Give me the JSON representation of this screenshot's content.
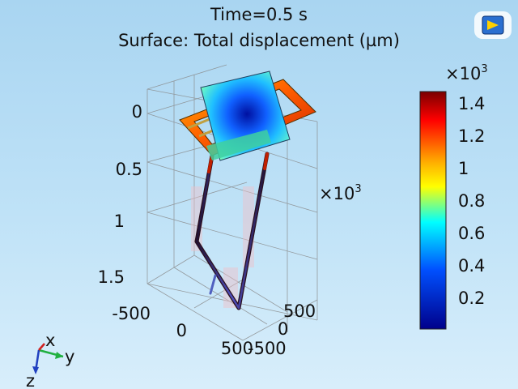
{
  "plot": {
    "title_line1": "Time=0.5 s",
    "title_line2": "Surface: Total displacement (µm)"
  },
  "axes": {
    "z_ticks": [
      "0",
      "0.5",
      "1",
      "1.5"
    ],
    "x_ticks": [
      "-500",
      "0",
      "500"
    ],
    "y_ticks": [
      "500",
      "0",
      "-500"
    ],
    "axis_multiplier": "×10",
    "axis_multiplier_exp": "3"
  },
  "colorbar": {
    "multiplier": "×10",
    "multiplier_exp": "3",
    "ticks": [
      "1.4",
      "1.2",
      "1",
      "0.8",
      "0.6",
      "0.4",
      "0.2"
    ],
    "colors": [
      "#7a0000",
      "#ff0000",
      "#ffb000",
      "#ffff00",
      "#00ffff",
      "#0050ff",
      "#00008a"
    ]
  },
  "triad": {
    "x": "x",
    "y": "y",
    "z": "z"
  },
  "icons": {
    "app": "comsol-logo-icon"
  }
}
